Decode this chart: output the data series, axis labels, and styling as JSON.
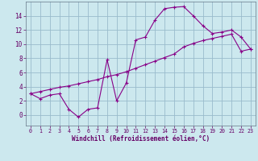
{
  "xlabel": "Windchill (Refroidissement éolien,°C)",
  "background_color": "#cce8ee",
  "line_color": "#880088",
  "grid_color": "#99bbcc",
  "curve1_x": [
    0,
    1,
    2,
    3,
    4,
    5,
    6,
    7,
    8,
    9,
    10,
    11,
    12,
    13,
    14,
    15,
    16,
    17,
    18,
    19,
    20,
    21,
    22,
    23
  ],
  "curve1_y": [
    3.0,
    2.3,
    2.8,
    3.0,
    0.8,
    -0.3,
    0.8,
    1.0,
    7.8,
    2.0,
    4.5,
    10.6,
    11.0,
    13.4,
    15.0,
    15.2,
    15.3,
    14.0,
    12.6,
    11.5,
    11.7,
    12.0,
    11.0,
    9.3
  ],
  "curve2_x": [
    0,
    1,
    2,
    3,
    4,
    5,
    6,
    7,
    8,
    9,
    10,
    11,
    12,
    13,
    14,
    15,
    16,
    17,
    18,
    19,
    20,
    21,
    22,
    23
  ],
  "curve2_y": [
    3.0,
    3.3,
    3.6,
    3.9,
    4.1,
    4.4,
    4.7,
    5.0,
    5.4,
    5.7,
    6.1,
    6.6,
    7.1,
    7.6,
    8.1,
    8.6,
    9.6,
    10.1,
    10.5,
    10.8,
    11.1,
    11.4,
    9.0,
    9.3
  ],
  "xlim": [
    -0.5,
    23.5
  ],
  "ylim": [
    -1.5,
    16
  ],
  "xticks": [
    0,
    1,
    2,
    3,
    4,
    5,
    6,
    7,
    8,
    9,
    10,
    11,
    12,
    13,
    14,
    15,
    16,
    17,
    18,
    19,
    20,
    21,
    22,
    23
  ],
  "yticks": [
    0,
    2,
    4,
    6,
    8,
    10,
    12,
    14
  ]
}
